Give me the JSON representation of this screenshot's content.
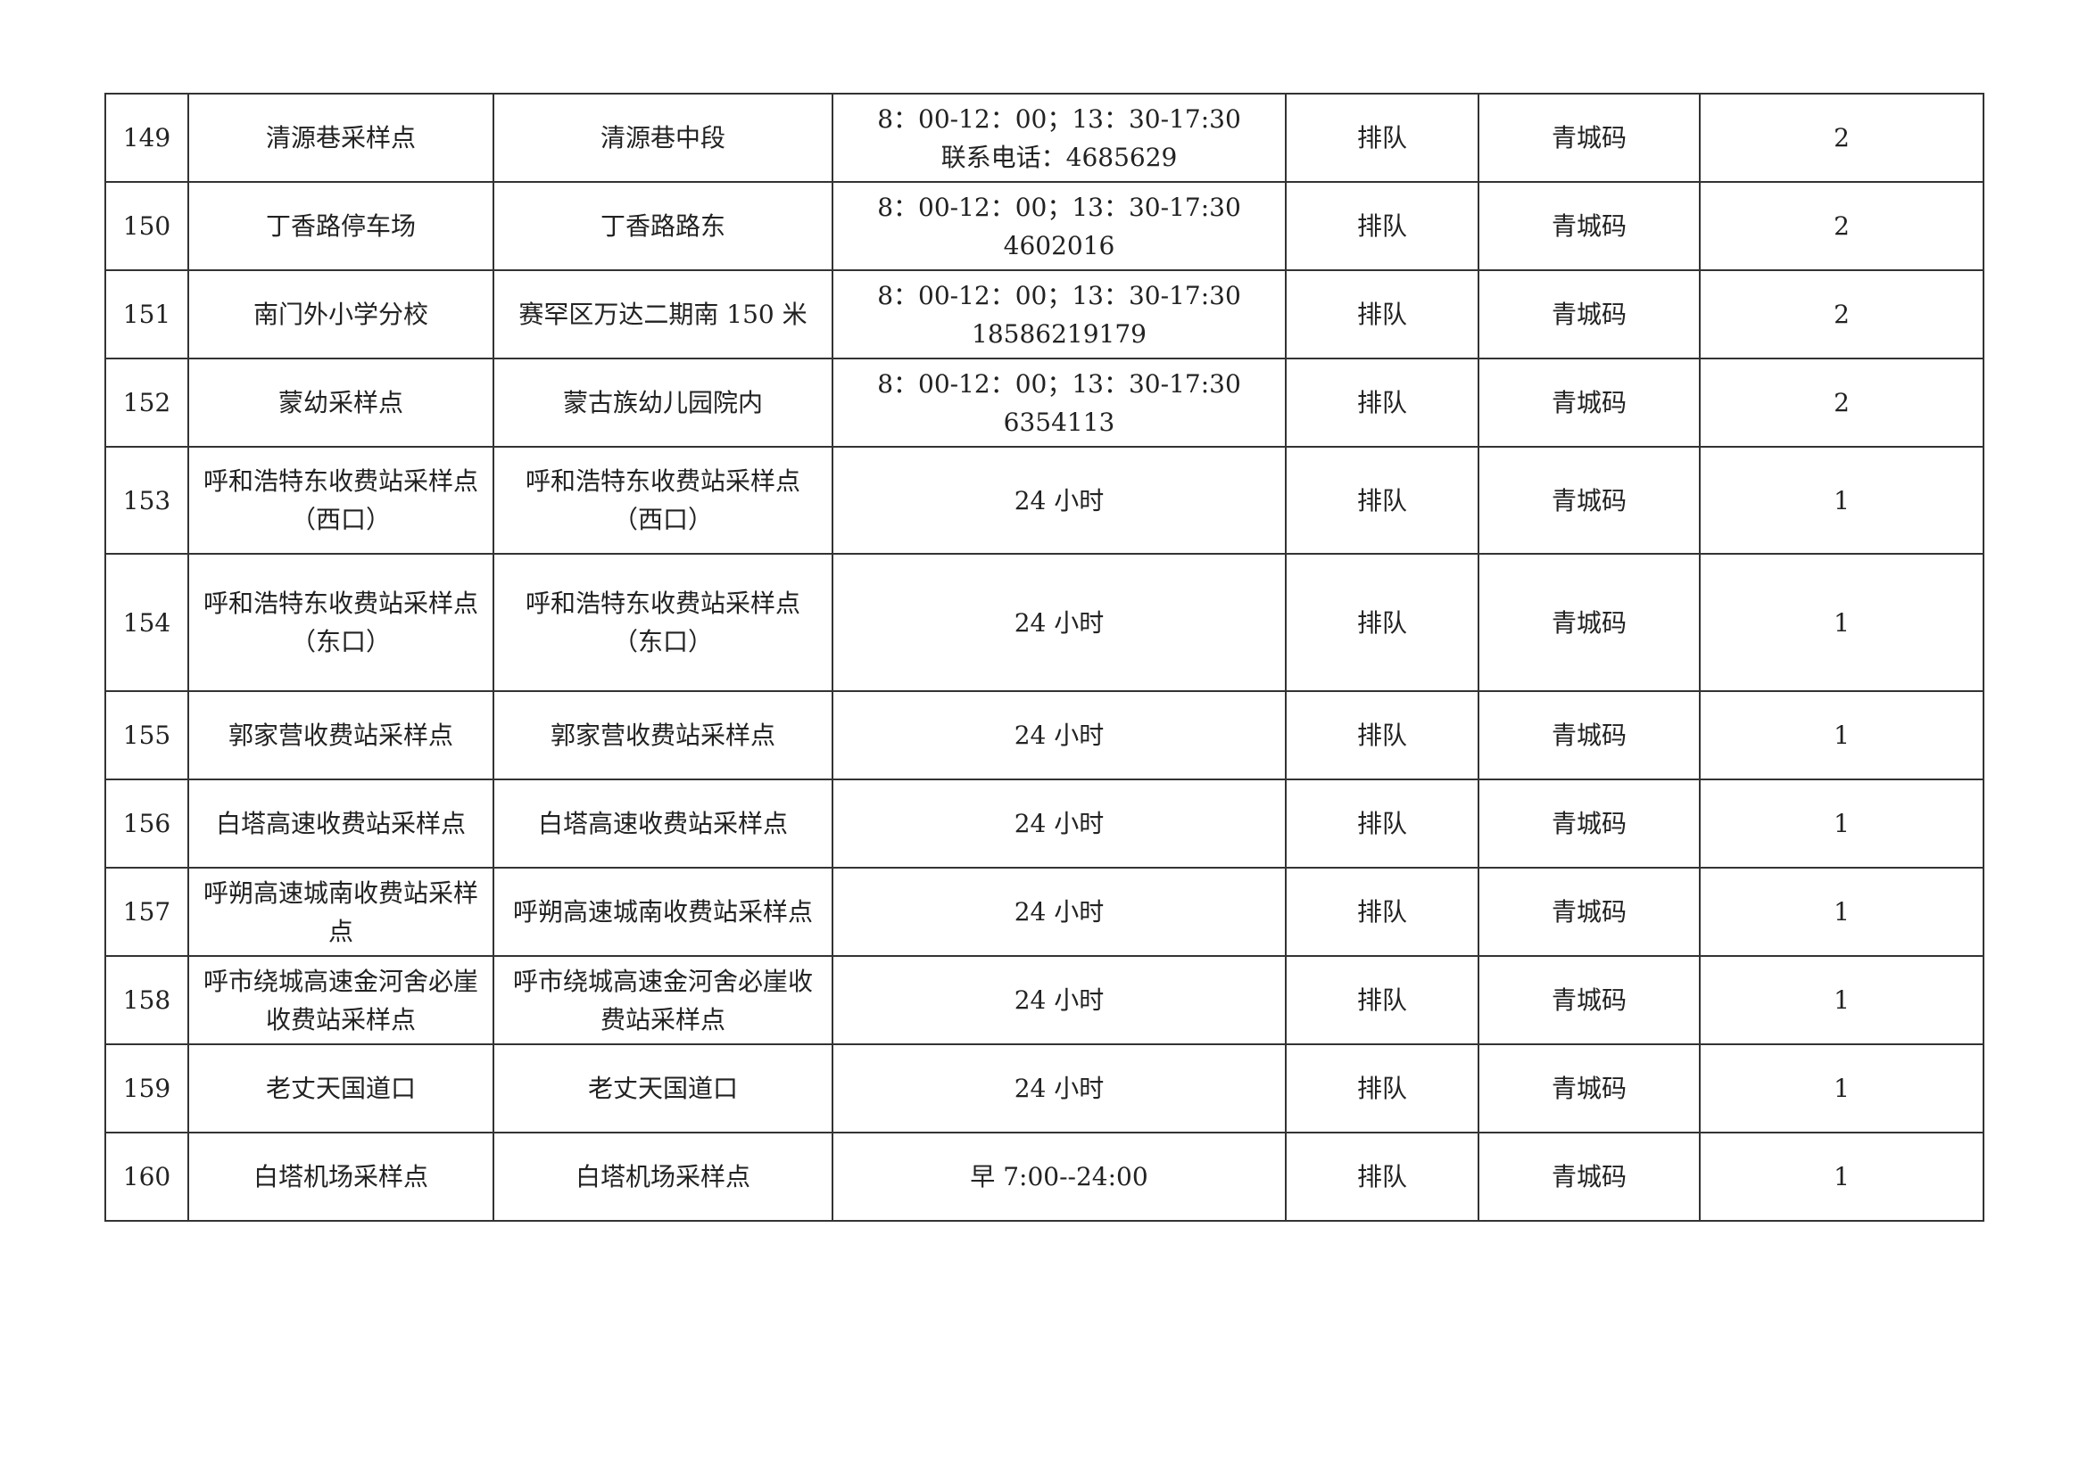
{
  "rows": [
    {
      "no": "149",
      "name": "清源巷采样点",
      "address": "清源巷中段",
      "hours": "8：00-12：00；13：30-17:30\n联系电话：4685629",
      "mode": "排队",
      "code": "青城码",
      "count": "2"
    },
    {
      "no": "150",
      "name": "丁香路停车场",
      "address": "丁香路路东",
      "hours": "8：00-12：00；13：30-17:30\n4602016",
      "mode": "排队",
      "code": "青城码",
      "count": "2"
    },
    {
      "no": "151",
      "name": "南门外小学分校",
      "address": "赛罕区万达二期南 150 米",
      "hours": "8：00-12：00；13：30-17:30\n18586219179",
      "mode": "排队",
      "code": "青城码",
      "count": "2"
    },
    {
      "no": "152",
      "name": "蒙幼采样点",
      "address": "蒙古族幼儿园院内",
      "hours": "8：00-12：00；13：30-17:30\n6354113",
      "mode": "排队",
      "code": "青城码",
      "count": "2"
    },
    {
      "no": "153",
      "name": "呼和浩特东收费站采样点（西口）",
      "address": "呼和浩特东收费站采样点（西口）",
      "hours": "24 小时",
      "mode": "排队",
      "code": "青城码",
      "count": "1"
    },
    {
      "no": "154",
      "name": "呼和浩特东收费站采样点（东口）",
      "address": "呼和浩特东收费站采样点（东口）",
      "hours": "24 小时",
      "mode": "排队",
      "code": "青城码",
      "count": "1"
    },
    {
      "no": "155",
      "name": "郭家营收费站采样点",
      "address": "郭家营收费站采样点",
      "hours": "24 小时",
      "mode": "排队",
      "code": "青城码",
      "count": "1"
    },
    {
      "no": "156",
      "name": "白塔高速收费站采样点",
      "address": "白塔高速收费站采样点",
      "hours": "24 小时",
      "mode": "排队",
      "code": "青城码",
      "count": "1"
    },
    {
      "no": "157",
      "name": "呼朔高速城南收费站采样点",
      "address": "呼朔高速城南收费站采样点",
      "hours": "24 小时",
      "mode": "排队",
      "code": "青城码",
      "count": "1"
    },
    {
      "no": "158",
      "name": "呼市绕城高速金河舍必崖收费站采样点",
      "address": "呼市绕城高速金河舍必崖收费站采样点",
      "hours": "24 小时",
      "mode": "排队",
      "code": "青城码",
      "count": "1"
    },
    {
      "no": "159",
      "name": "老丈天国道口",
      "address": "老丈天国道口",
      "hours": "24 小时",
      "mode": "排队",
      "code": "青城码",
      "count": "1"
    },
    {
      "no": "160",
      "name": "白塔机场采样点",
      "address": "白塔机场采样点",
      "hours": "早 7:00--24:00",
      "mode": "排队",
      "code": "青城码",
      "count": "1"
    }
  ]
}
